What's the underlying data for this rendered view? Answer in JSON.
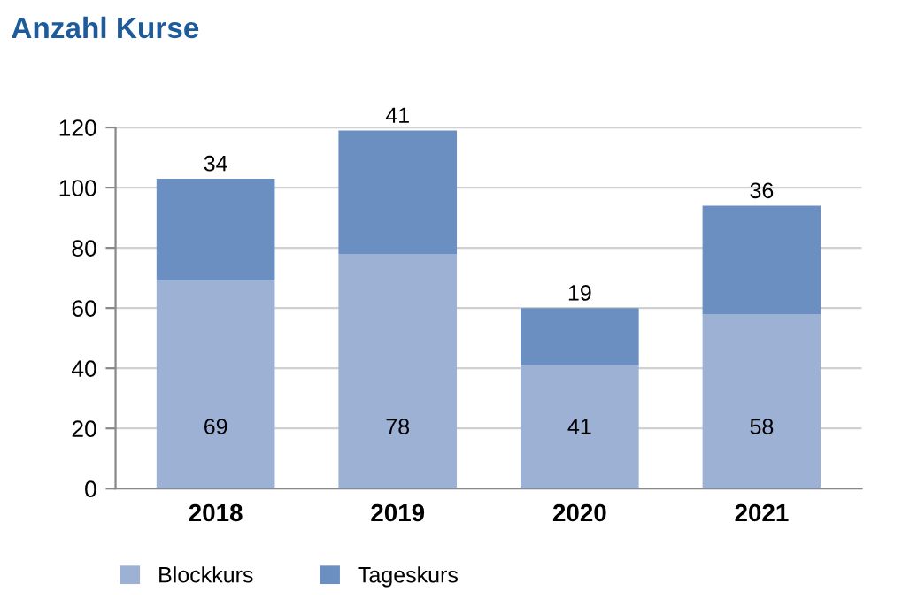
{
  "chart_data": {
    "type": "bar",
    "title": "Anzahl Kurse",
    "stacked": true,
    "categories": [
      "2018",
      "2019",
      "2020",
      "2021"
    ],
    "series": [
      {
        "name": "Blockkurs",
        "color": "#9db1d5",
        "values": [
          69,
          78,
          41,
          58
        ]
      },
      {
        "name": "Tageskurs",
        "color": "#6b8fc0",
        "values": [
          34,
          41,
          19,
          36
        ]
      }
    ],
    "ylim": [
      0,
      120
    ],
    "yticks": [
      0,
      20,
      40,
      60,
      80,
      100,
      120
    ],
    "grid": "y",
    "legend": "bottom",
    "data_labels": true
  }
}
